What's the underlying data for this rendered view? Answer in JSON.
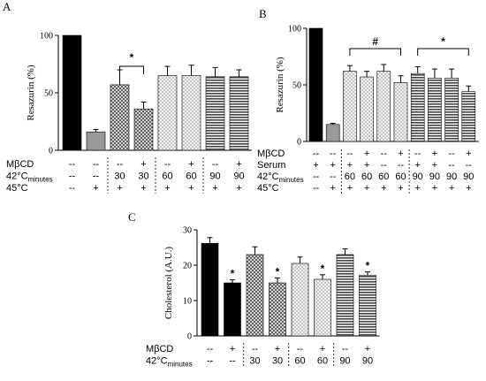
{
  "chart_data": [
    {
      "panel": "A",
      "type": "bar",
      "ylabel": "Resazurin (%)",
      "ylim": [
        0,
        100
      ],
      "yticks": [
        0,
        50,
        100
      ],
      "values": [
        100,
        16,
        57,
        36,
        65,
        65,
        64,
        64
      ],
      "errors": [
        0,
        2,
        13,
        6,
        8,
        9,
        8,
        6
      ],
      "styles": [
        "solid-black",
        "solid-gray",
        "cross-hatch",
        "cross-hatch",
        "light-check",
        "light-check",
        "h-lines",
        "h-lines"
      ],
      "row_labels": [
        "MβCD",
        "42°C",
        "45°C"
      ],
      "row_label_subscript": [
        "",
        "minutes",
        ""
      ],
      "rows": [
        [
          "--",
          "--",
          "--",
          "+",
          "--",
          "+",
          "--",
          "+"
        ],
        [
          "--",
          "--",
          "30",
          "30",
          "60",
          "60",
          "90",
          "90"
        ],
        [
          "--",
          "+",
          "+",
          "+",
          "+",
          "+",
          "+",
          "+"
        ]
      ],
      "annotations": [
        {
          "text": "*",
          "from": 2,
          "to": 3
        }
      ]
    },
    {
      "panel": "B",
      "type": "bar",
      "ylabel": "Resazurin (%)",
      "ylim": [
        0,
        100
      ],
      "yticks": [
        0,
        50,
        100
      ],
      "values": [
        100,
        15,
        62,
        57,
        62,
        52,
        60,
        56,
        56,
        44
      ],
      "errors": [
        0,
        1,
        5,
        5,
        6,
        6,
        6,
        8,
        8,
        5
      ],
      "styles": [
        "solid-black",
        "solid-gray",
        "light-check",
        "light-check",
        "light-check",
        "light-check",
        "h-lines",
        "h-lines",
        "h-lines",
        "h-lines"
      ],
      "row_labels": [
        "MβCD",
        "Serum",
        "42°C",
        "45°C"
      ],
      "row_label_subscript": [
        "",
        "",
        "minutes",
        ""
      ],
      "rows": [
        [
          "--",
          "--",
          "--",
          "+",
          "--",
          "+",
          "--",
          "+",
          "--",
          "+"
        ],
        [
          "+",
          "+",
          "+",
          "+",
          "--",
          "--",
          "+",
          "+",
          "--",
          "--"
        ],
        [
          "--",
          "--",
          "60",
          "60",
          "60",
          "60",
          "90",
          "90",
          "90",
          "90"
        ],
        [
          "--",
          "+",
          "+",
          "+",
          "+",
          "+",
          "+",
          "+",
          "+",
          "+"
        ]
      ],
      "annotations": [
        {
          "text": "#",
          "from": 2,
          "to": 5
        },
        {
          "text": "*",
          "from": 6,
          "to": 9
        }
      ]
    },
    {
      "panel": "C",
      "type": "bar",
      "ylabel": "Cholesterol (A.U.)",
      "ylim": [
        0,
        30
      ],
      "yticks": [
        0,
        10,
        20,
        30
      ],
      "values": [
        26.2,
        15,
        23,
        15,
        20.5,
        16,
        23,
        17.2
      ],
      "errors": [
        1.6,
        0.9,
        2.2,
        1.4,
        1.8,
        1.3,
        1.6,
        0.9
      ],
      "styles": [
        "solid-black",
        "solid-black",
        "cross-hatch",
        "cross-hatch",
        "light-check",
        "light-check",
        "h-lines",
        "h-lines"
      ],
      "row_labels": [
        "MβCD",
        "42°C"
      ],
      "row_label_subscript": [
        "",
        "minutes"
      ],
      "rows": [
        [
          "--",
          "+",
          "--",
          "+",
          "--",
          "+",
          "--",
          "+"
        ],
        [
          "--",
          "--",
          "30",
          "30",
          "60",
          "60",
          "90",
          "90"
        ]
      ],
      "stars": [
        1,
        3,
        5,
        7
      ],
      "star_text": "*"
    }
  ]
}
